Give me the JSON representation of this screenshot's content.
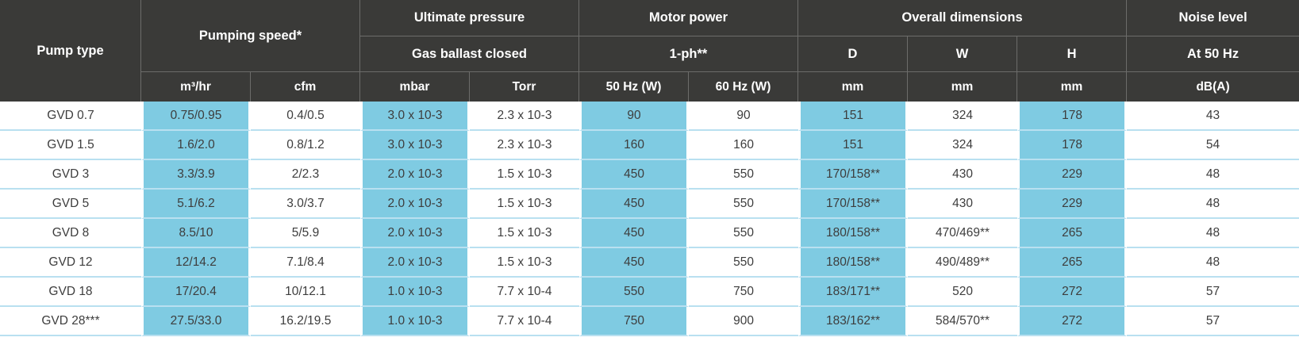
{
  "colors": {
    "header_bg": "#3a3a38",
    "header_divider": "#6c6c6a",
    "header_text": "#ffffff",
    "cell_blue": "#7fcbe2",
    "row_divider": "#b9e0f0",
    "data_text": "#3d3d3d"
  },
  "header": {
    "pump_type": "Pump type",
    "pumping_speed": "Pumping speed*",
    "ultimate_pressure": "Ultimate pressure",
    "gas_ballast_closed": "Gas ballast closed",
    "motor_power": "Motor power",
    "one_ph": "1-ph**",
    "overall_dimensions": "Overall dimensions",
    "noise_level": "Noise level",
    "dim_d": "D",
    "dim_w": "W",
    "dim_h": "H",
    "at_50hz": "At 50 Hz",
    "units": [
      "m³/hr",
      "cfm",
      "mbar",
      "Torr",
      "50 Hz (W)",
      "60 Hz (W)",
      "mm",
      "mm",
      "mm",
      "dB(A)"
    ]
  },
  "rows": [
    {
      "name": "GVD 0.7",
      "values": [
        "0.75/0.95",
        "0.4/0.5",
        "3.0 x 10-3",
        "2.3 x 10-3",
        "90",
        "90",
        "151",
        "324",
        "178",
        "43"
      ]
    },
    {
      "name": "GVD 1.5",
      "values": [
        "1.6/2.0",
        "0.8/1.2",
        "3.0 x 10-3",
        "2.3 x 10-3",
        "160",
        "160",
        "151",
        "324",
        "178",
        "54"
      ]
    },
    {
      "name": "GVD 3",
      "values": [
        "3.3/3.9",
        "2/2.3",
        "2.0 x 10-3",
        "1.5 x 10-3",
        "450",
        "550",
        "170/158**",
        "430",
        "229",
        "48"
      ]
    },
    {
      "name": "GVD 5",
      "values": [
        "5.1/6.2",
        "3.0/3.7",
        "2.0 x 10-3",
        "1.5 x 10-3",
        "450",
        "550",
        "170/158**",
        "430",
        "229",
        "48"
      ]
    },
    {
      "name": "GVD 8",
      "values": [
        "8.5/10",
        "5/5.9",
        "2.0 x 10-3",
        "1.5 x 10-3",
        "450",
        "550",
        "180/158**",
        "470/469**",
        "265",
        "48"
      ]
    },
    {
      "name": "GVD 12",
      "values": [
        "12/14.2",
        "7.1/8.4",
        "2.0 x 10-3",
        "1.5 x 10-3",
        "450",
        "550",
        "180/158**",
        "490/489**",
        "265",
        "48"
      ]
    },
    {
      "name": "GVD 18",
      "values": [
        "17/20.4",
        "10/12.1",
        "1.0 x 10-3",
        "7.7 x 10-4",
        "550",
        "750",
        "183/171**",
        "520",
        "272",
        "57"
      ]
    },
    {
      "name": "GVD 28***",
      "values": [
        "27.5/33.0",
        "16.2/19.5",
        "1.0 x 10-3",
        "7.7 x 10-4",
        "750",
        "900",
        "183/162**",
        "584/570**",
        "272",
        "57"
      ]
    }
  ],
  "chart_data": {
    "type": "table",
    "title": "Pump specifications",
    "column_groups": [
      {
        "label": "Pump type",
        "columns": [
          "Pump type"
        ]
      },
      {
        "label": "Pumping speed*",
        "columns": [
          "m³/hr",
          "cfm"
        ]
      },
      {
        "label": "Ultimate pressure — Gas ballast closed",
        "columns": [
          "mbar",
          "Torr"
        ]
      },
      {
        "label": "Motor power — 1-ph**",
        "columns": [
          "50 Hz (W)",
          "60 Hz (W)"
        ]
      },
      {
        "label": "Overall dimensions",
        "columns": [
          "D mm",
          "W mm",
          "H mm"
        ]
      },
      {
        "label": "Noise level — At 50 Hz",
        "columns": [
          "dB(A)"
        ]
      }
    ],
    "rows": [
      [
        "GVD 0.7",
        "0.75/0.95",
        "0.4/0.5",
        "3.0 x 10-3",
        "2.3 x 10-3",
        "90",
        "90",
        "151",
        "324",
        "178",
        "43"
      ],
      [
        "GVD 1.5",
        "1.6/2.0",
        "0.8/1.2",
        "3.0 x 10-3",
        "2.3 x 10-3",
        "160",
        "160",
        "151",
        "324",
        "178",
        "54"
      ],
      [
        "GVD 3",
        "3.3/3.9",
        "2/2.3",
        "2.0 x 10-3",
        "1.5 x 10-3",
        "450",
        "550",
        "170/158**",
        "430",
        "229",
        "48"
      ],
      [
        "GVD 5",
        "5.1/6.2",
        "3.0/3.7",
        "2.0 x 10-3",
        "1.5 x 10-3",
        "450",
        "550",
        "170/158**",
        "430",
        "229",
        "48"
      ],
      [
        "GVD 8",
        "8.5/10",
        "5/5.9",
        "2.0 x 10-3",
        "1.5 x 10-3",
        "450",
        "550",
        "180/158**",
        "470/469**",
        "265",
        "48"
      ],
      [
        "GVD 12",
        "12/14.2",
        "7.1/8.4",
        "2.0 x 10-3",
        "1.5 x 10-3",
        "450",
        "550",
        "180/158**",
        "490/489**",
        "265",
        "48"
      ],
      [
        "GVD 18",
        "17/20.4",
        "10/12.1",
        "1.0 x 10-3",
        "7.7 x 10-4",
        "550",
        "750",
        "183/171**",
        "520",
        "272",
        "57"
      ],
      [
        "GVD 28***",
        "27.5/33.0",
        "16.2/19.5",
        "1.0 x 10-3",
        "7.7 x 10-4",
        "750",
        "900",
        "183/162**",
        "584/570**",
        "272",
        "57"
      ]
    ]
  }
}
